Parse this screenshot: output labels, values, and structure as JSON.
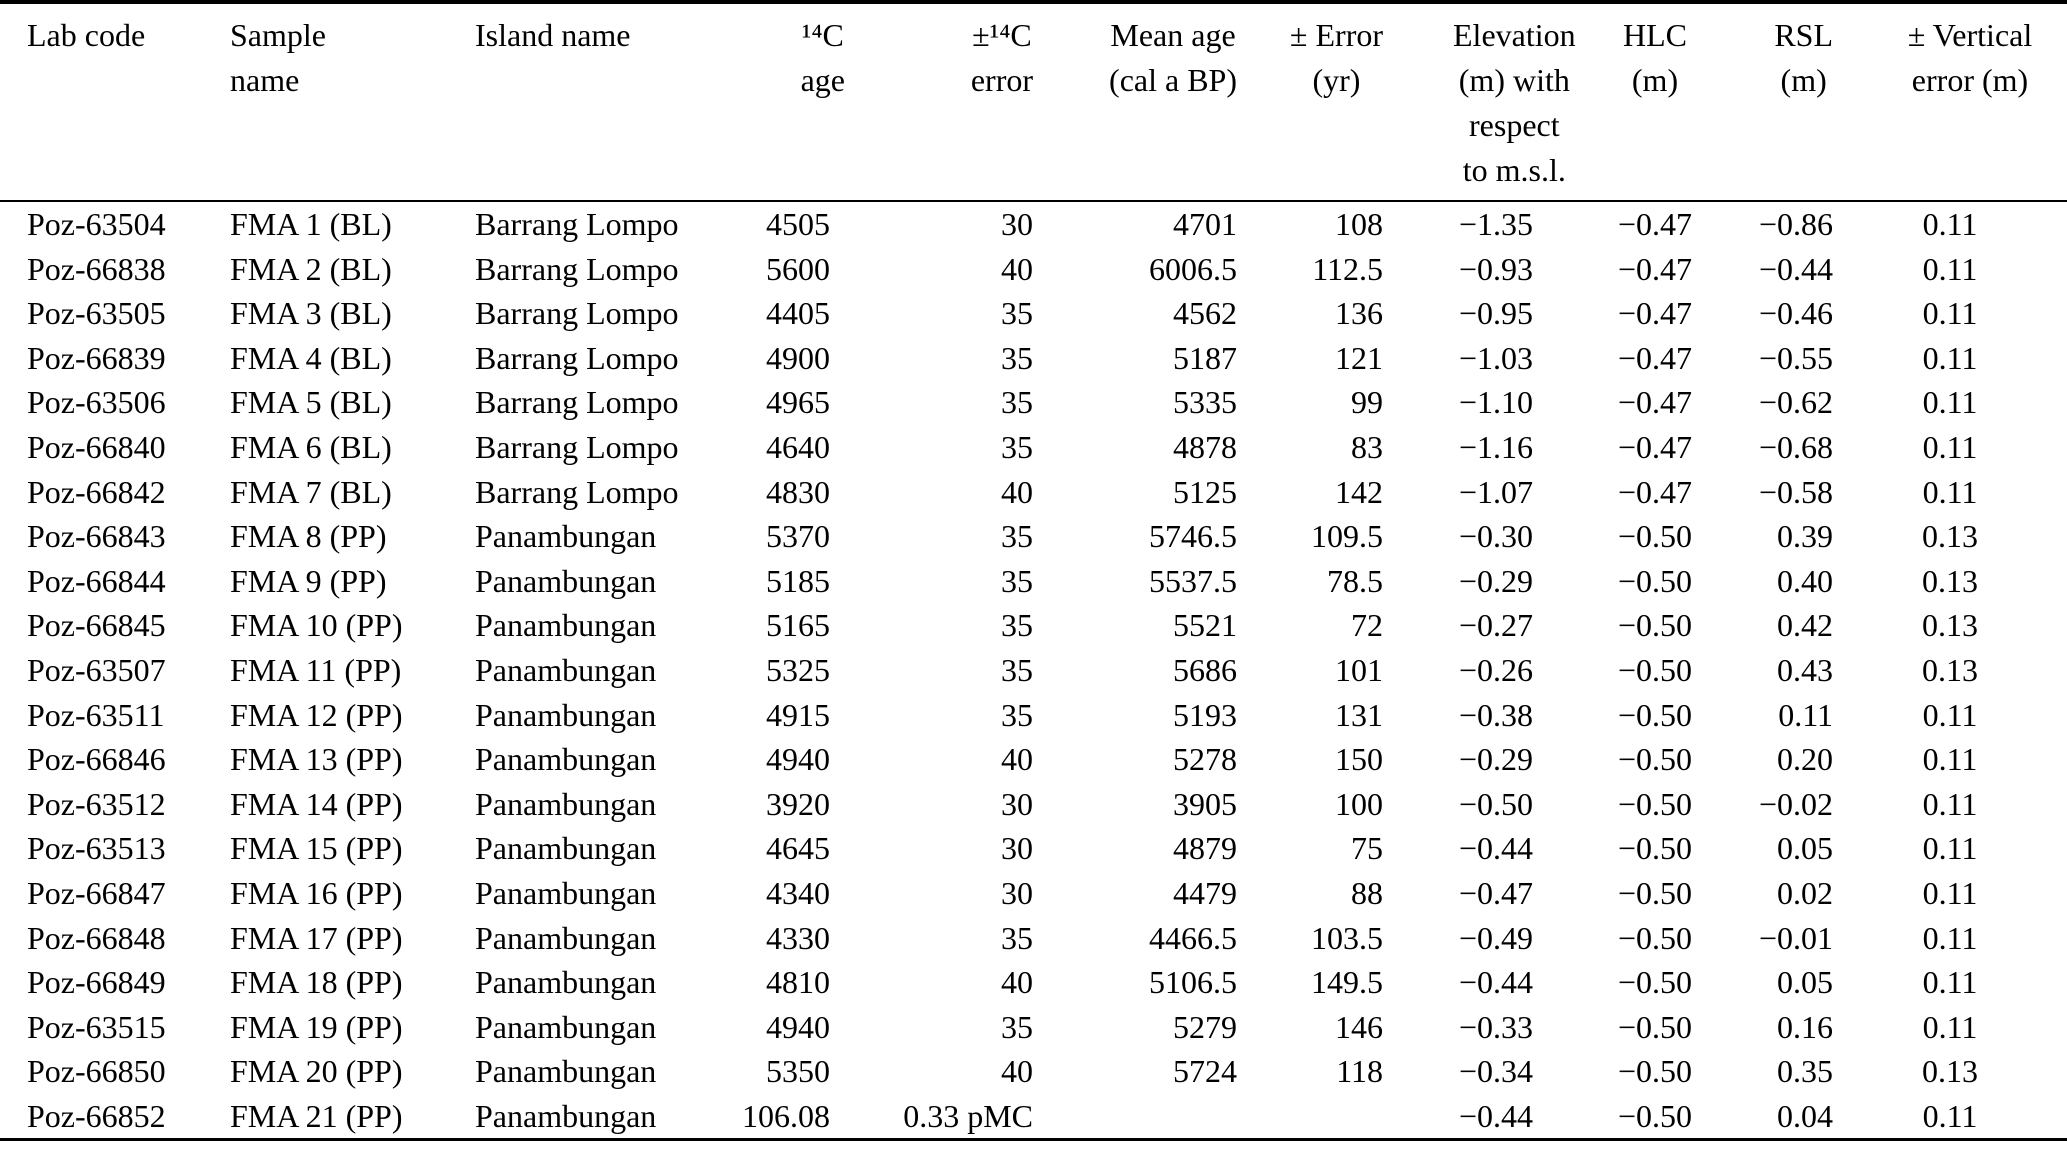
{
  "table": {
    "columns": [
      {
        "id": "lab_code",
        "label": "Lab code"
      },
      {
        "id": "sample_name",
        "label": "Sample\nname"
      },
      {
        "id": "island_name",
        "label": "Island name"
      },
      {
        "id": "c14_age",
        "label": "¹⁴C\nage"
      },
      {
        "id": "c14_error",
        "label": "±¹⁴C\nerror"
      },
      {
        "id": "mean_age",
        "label": "Mean age\n(cal a BP)"
      },
      {
        "id": "error_yr",
        "label": "± Error\n(yr)"
      },
      {
        "id": "elevation",
        "label": "Elevation\n(m) with\nrespect\nto m.s.l."
      },
      {
        "id": "hlc",
        "label": "HLC\n(m)"
      },
      {
        "id": "rsl",
        "label": "RSL\n(m)"
      },
      {
        "id": "vertical_error",
        "label": "± Vertical\nerror (m)"
      }
    ],
    "rows": [
      [
        "Poz-63504",
        "FMA 1 (BL)",
        "Barrang Lompo",
        "4505",
        "30",
        "4701",
        "108",
        "−1.35",
        "−0.47",
        "−0.86",
        "0.11"
      ],
      [
        "Poz-66838",
        "FMA 2 (BL)",
        "Barrang Lompo",
        "5600",
        "40",
        "6006.5",
        "112.5",
        "−0.93",
        "−0.47",
        "−0.44",
        "0.11"
      ],
      [
        "Poz-63505",
        "FMA 3 (BL)",
        "Barrang Lompo",
        "4405",
        "35",
        "4562",
        "136",
        "−0.95",
        "−0.47",
        "−0.46",
        "0.11"
      ],
      [
        "Poz-66839",
        "FMA 4 (BL)",
        "Barrang Lompo",
        "4900",
        "35",
        "5187",
        "121",
        "−1.03",
        "−0.47",
        "−0.55",
        "0.11"
      ],
      [
        "Poz-63506",
        "FMA 5 (BL)",
        "Barrang Lompo",
        "4965",
        "35",
        "5335",
        "99",
        "−1.10",
        "−0.47",
        "−0.62",
        "0.11"
      ],
      [
        "Poz-66840",
        "FMA 6 (BL)",
        "Barrang Lompo",
        "4640",
        "35",
        "4878",
        "83",
        "−1.16",
        "−0.47",
        "−0.68",
        "0.11"
      ],
      [
        "Poz-66842",
        "FMA 7 (BL)",
        "Barrang Lompo",
        "4830",
        "40",
        "5125",
        "142",
        "−1.07",
        "−0.47",
        "−0.58",
        "0.11"
      ],
      [
        "Poz-66843",
        "FMA 8 (PP)",
        "Panambungan",
        "5370",
        "35",
        "5746.5",
        "109.5",
        "−0.30",
        "−0.50",
        "0.39",
        "0.13"
      ],
      [
        "Poz-66844",
        "FMA 9 (PP)",
        "Panambungan",
        "5185",
        "35",
        "5537.5",
        "78.5",
        "−0.29",
        "−0.50",
        "0.40",
        "0.13"
      ],
      [
        "Poz-66845",
        "FMA 10 (PP)",
        "Panambungan",
        "5165",
        "35",
        "5521",
        "72",
        "−0.27",
        "−0.50",
        "0.42",
        "0.13"
      ],
      [
        "Poz-63507",
        "FMA 11 (PP)",
        "Panambungan",
        "5325",
        "35",
        "5686",
        "101",
        "−0.26",
        "−0.50",
        "0.43",
        "0.13"
      ],
      [
        "Poz-63511",
        "FMA 12 (PP)",
        "Panambungan",
        "4915",
        "35",
        "5193",
        "131",
        "−0.38",
        "−0.50",
        "0.11",
        "0.11"
      ],
      [
        "Poz-66846",
        "FMA 13 (PP)",
        "Panambungan",
        "4940",
        "40",
        "5278",
        "150",
        "−0.29",
        "−0.50",
        "0.20",
        "0.11"
      ],
      [
        "Poz-63512",
        "FMA 14 (PP)",
        "Panambungan",
        "3920",
        "30",
        "3905",
        "100",
        "−0.50",
        "−0.50",
        "−0.02",
        "0.11"
      ],
      [
        "Poz-63513",
        "FMA 15 (PP)",
        "Panambungan",
        "4645",
        "30",
        "4879",
        "75",
        "−0.44",
        "−0.50",
        "0.05",
        "0.11"
      ],
      [
        "Poz-66847",
        "FMA 16 (PP)",
        "Panambungan",
        "4340",
        "30",
        "4479",
        "88",
        "−0.47",
        "−0.50",
        "0.02",
        "0.11"
      ],
      [
        "Poz-66848",
        "FMA 17 (PP)",
        "Panambungan",
        "4330",
        "35",
        "4466.5",
        "103.5",
        "−0.49",
        "−0.50",
        "−0.01",
        "0.11"
      ],
      [
        "Poz-66849",
        "FMA 18 (PP)",
        "Panambungan",
        "4810",
        "40",
        "5106.5",
        "149.5",
        "−0.44",
        "−0.50",
        "0.05",
        "0.11"
      ],
      [
        "Poz-63515",
        "FMA 19 (PP)",
        "Panambungan",
        "4940",
        "35",
        "5279",
        "146",
        "−0.33",
        "−0.50",
        "0.16",
        "0.11"
      ],
      [
        "Poz-66850",
        "FMA 20 (PP)",
        "Panambungan",
        "5350",
        "40",
        "5724",
        "118",
        "−0.34",
        "−0.50",
        "0.35",
        "0.13"
      ],
      [
        "Poz-66852",
        "FMA 21 (PP)",
        "Panambungan",
        "106.08",
        "0.33 pMC",
        "",
        "",
        "−0.44",
        "−0.50",
        "0.04",
        "0.11"
      ]
    ]
  }
}
